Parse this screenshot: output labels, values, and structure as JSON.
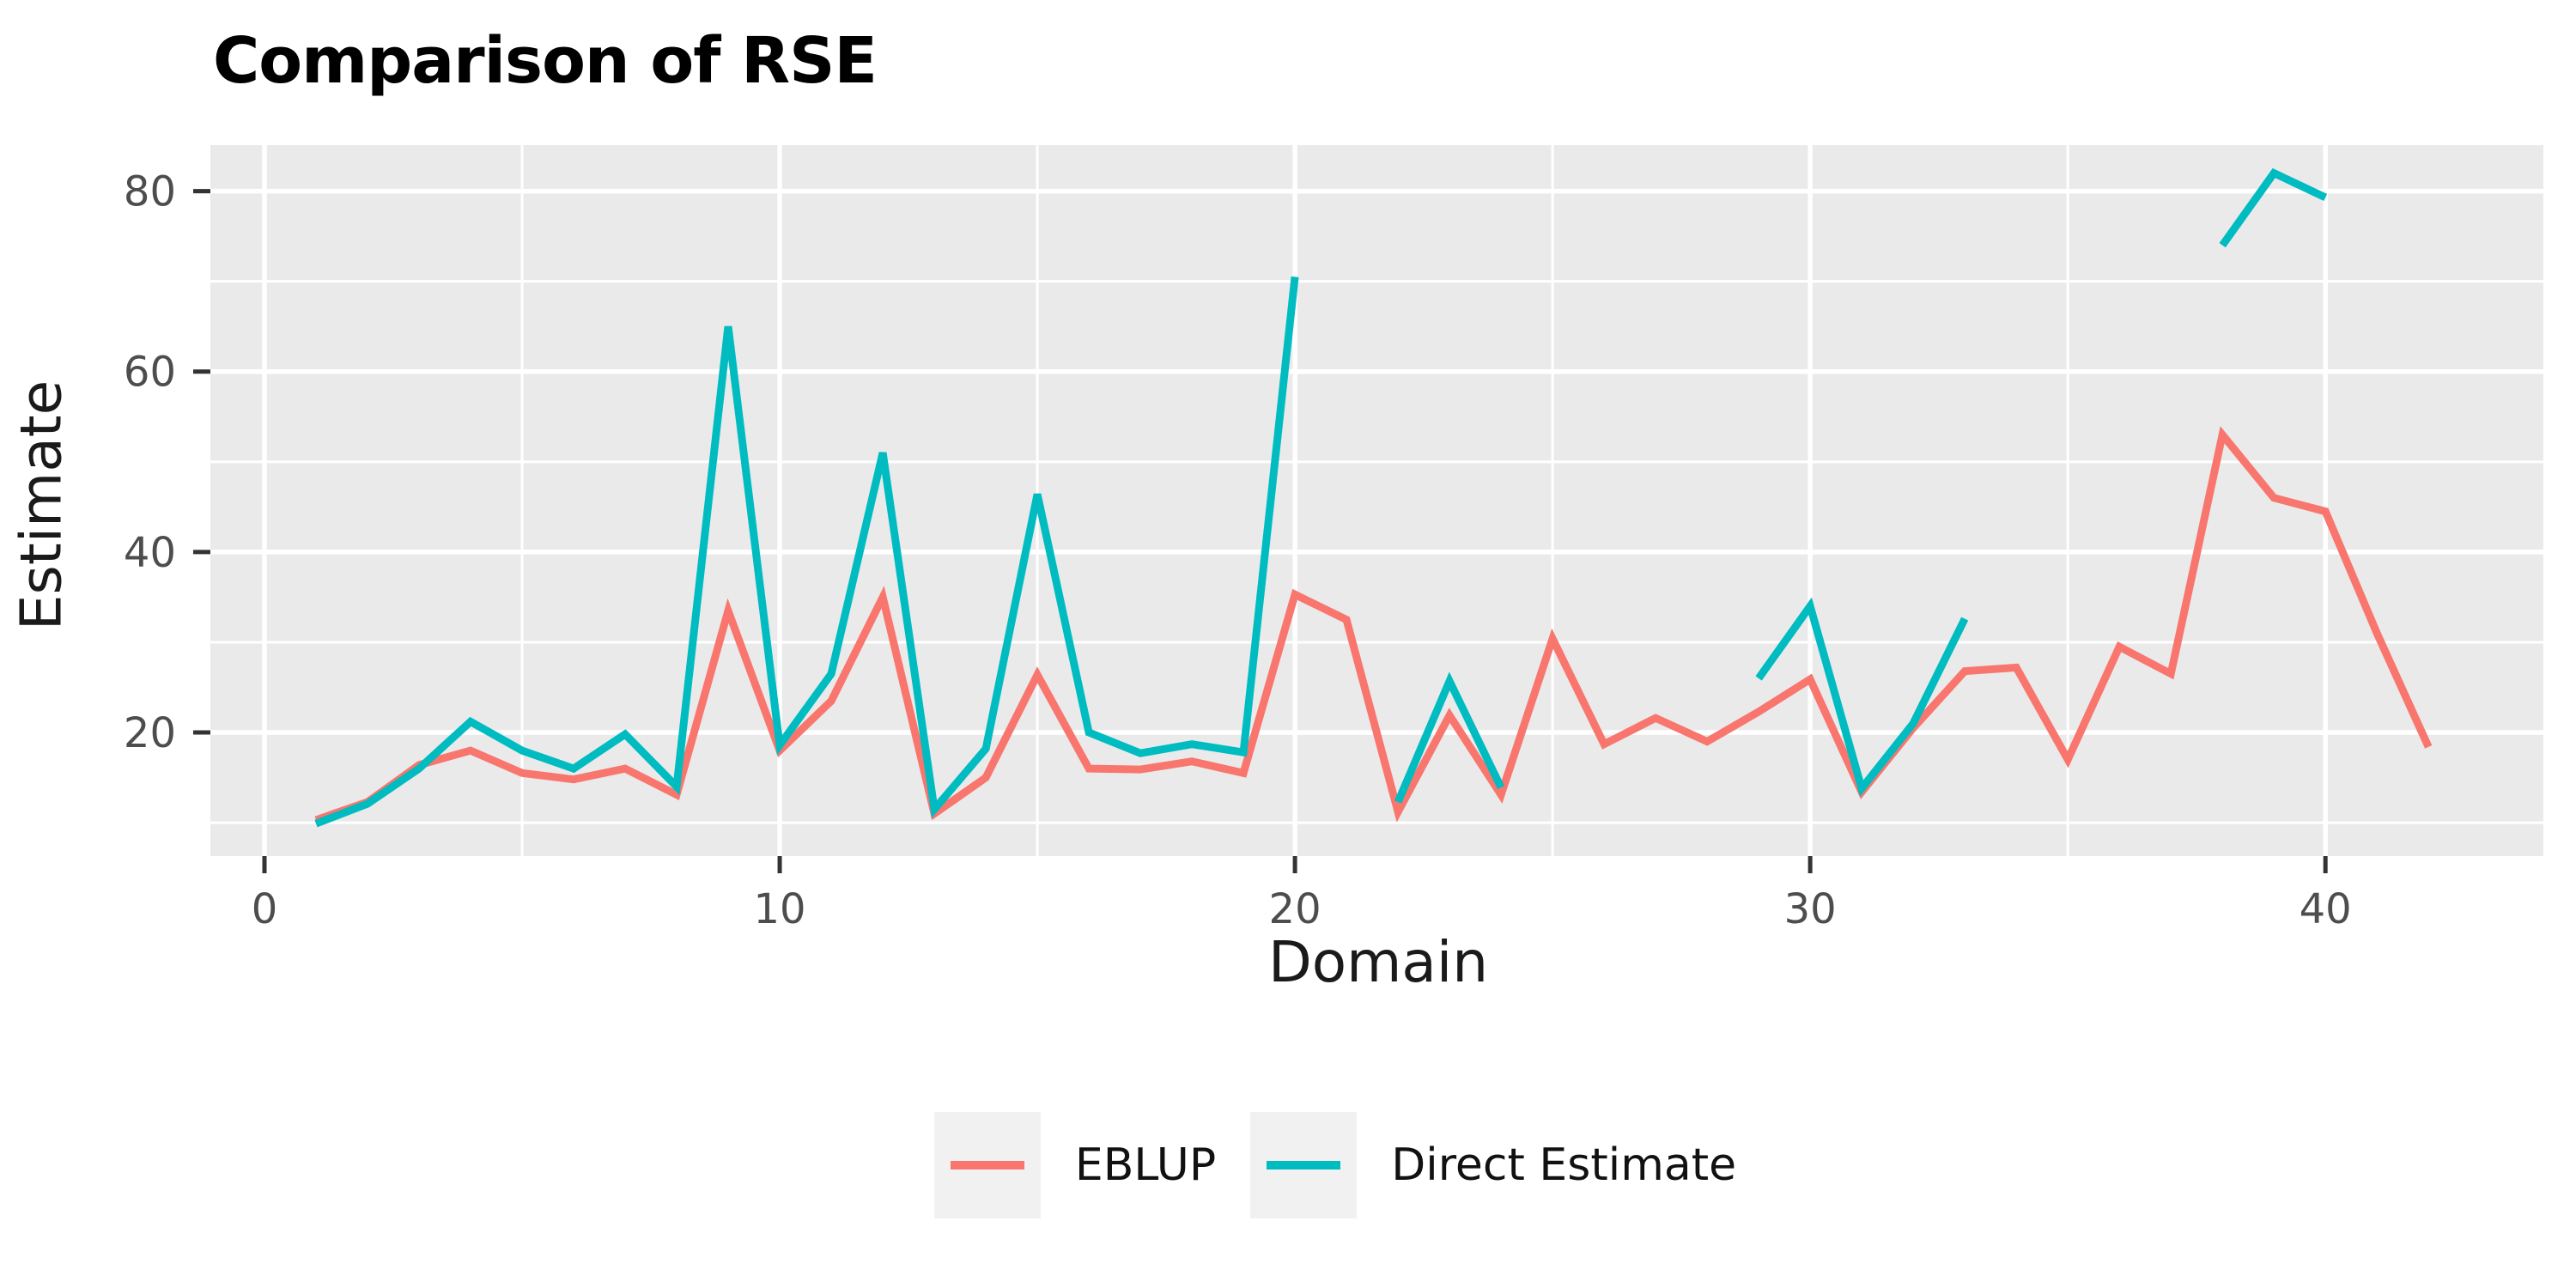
{
  "chart_data": {
    "type": "line",
    "title": "Comparison of RSE",
    "xlabel": "Domain",
    "ylabel": "Estimate",
    "x": [
      1,
      2,
      3,
      4,
      5,
      6,
      7,
      8,
      9,
      10,
      11,
      12,
      13,
      14,
      15,
      16,
      17,
      18,
      19,
      20,
      21,
      22,
      23,
      24,
      25,
      26,
      27,
      28,
      29,
      30,
      31,
      32,
      33,
      34,
      35,
      36,
      37,
      38,
      39,
      40,
      41,
      42
    ],
    "series": [
      {
        "name": "EBLUP",
        "color": "#F8766D",
        "values": [
          10.3,
          12.3,
          16.4,
          18,
          15.5,
          14.8,
          16,
          13.1,
          33.5,
          18,
          23.5,
          35,
          11,
          15,
          26.4,
          16,
          15.9,
          16.8,
          15.5,
          35.3,
          32.5,
          11.2,
          21.9,
          13.1,
          30.4,
          18.7,
          21.6,
          19,
          22.3,
          25.9,
          13.4,
          20.5,
          26.8,
          27.2,
          17,
          29.5,
          26.5,
          53,
          46,
          44.5,
          31,
          18.4
        ]
      },
      {
        "name": "Direct Estimate",
        "color": "#00BCC1",
        "values": [
          9.9,
          12.1,
          16,
          21.2,
          18,
          16,
          19.8,
          14,
          65,
          18.6,
          26.5,
          51,
          11.5,
          18.2,
          46.4,
          20,
          17.7,
          18.7,
          17.8,
          70.5,
          null,
          12.3,
          25.7,
          13.9,
          null,
          null,
          null,
          null,
          26,
          34,
          13.8,
          21,
          32.6,
          null,
          null,
          null,
          null,
          74,
          82,
          79.3,
          null,
          null
        ]
      }
    ],
    "x_axis": {
      "ticks": [
        0,
        10,
        20,
        30,
        40
      ],
      "minor_ticks": [
        5,
        15,
        25,
        35
      ],
      "lim": [
        -1.05,
        44.23
      ]
    },
    "y_axis": {
      "ticks": [
        20,
        40,
        60,
        80
      ],
      "minor_ticks": [
        10,
        30,
        50,
        70
      ],
      "lim": [
        6.3,
        85.1
      ]
    },
    "grid": "major-and-minor",
    "legend_position": "bottom",
    "style": {
      "panel_bg": "#EAEAEA",
      "grid_color": "#FFFFFF",
      "tick_color": "#333333",
      "tick_label_color": "#4D4D4D",
      "legend_key_bg": "#F1F1F1",
      "line_width": 9
    }
  }
}
